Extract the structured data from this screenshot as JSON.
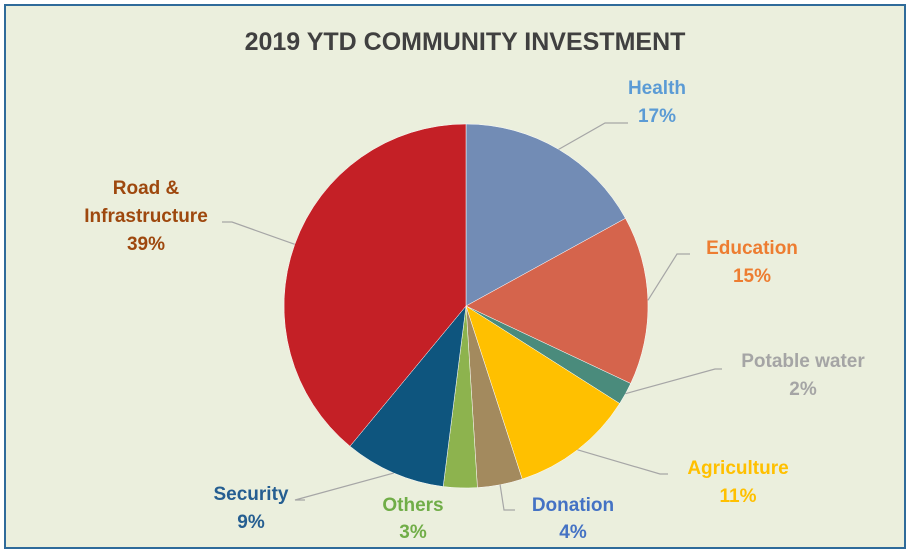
{
  "chart_data": {
    "type": "pie",
    "title": "2019 YTD COMMUNITY INVESTMENT",
    "slices": [
      {
        "name": "Health",
        "value": 17,
        "label": "17%",
        "color": "#728cb5",
        "text_color": "#5b9bd5"
      },
      {
        "name": "Education",
        "value": 15,
        "label": "15%",
        "color": "#d5644c",
        "text_color": "#ed7d31"
      },
      {
        "name": "Potable water",
        "value": 2,
        "label": "2%",
        "color": "#4a8b7c",
        "text_color": "#a5a5a5"
      },
      {
        "name": "Agriculture",
        "value": 11,
        "label": "11%",
        "color": "#ffc000",
        "text_color": "#ffc000"
      },
      {
        "name": "Donation",
        "value": 4,
        "label": "4%",
        "color": "#a38a5e",
        "text_color": "#4472c4"
      },
      {
        "name": "Others",
        "value": 3,
        "label": "3%",
        "color": "#8db34e",
        "text_color": "#70ad47"
      },
      {
        "name": "Security",
        "value": 9,
        "label": "9%",
        "color": "#0e557e",
        "text_color": "#255e91"
      },
      {
        "name": "Road & Infrastructure",
        "value": 39,
        "label": "39%",
        "color": "#c42026",
        "text_color": "#9e480e"
      }
    ]
  }
}
